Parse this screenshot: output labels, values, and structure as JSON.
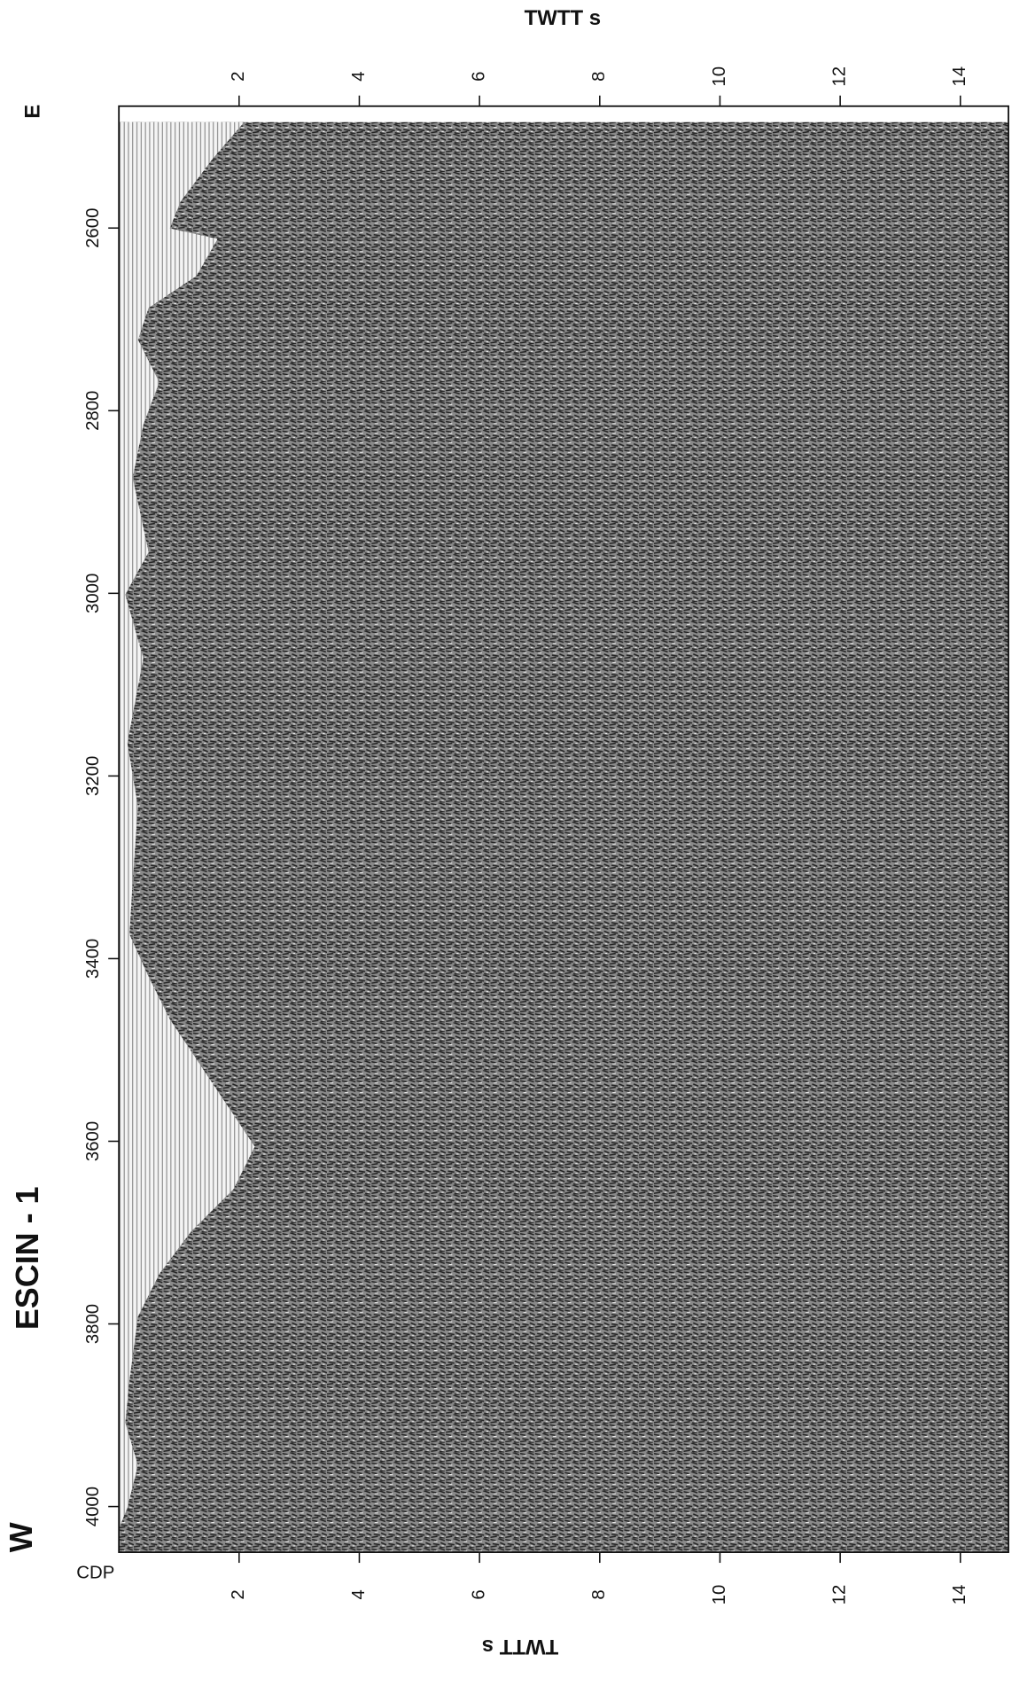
{
  "figure": {
    "title": "ESCIN - 1",
    "west_label": "W",
    "east_label": "E",
    "top_axis": {
      "title": "TWTT s",
      "lim": [
        0,
        14.8
      ],
      "ticks": [
        2,
        4,
        6,
        8,
        10,
        12,
        14
      ]
    },
    "bottom_axis": {
      "title": "TWTT s",
      "lim": [
        0,
        14.8
      ],
      "ticks": [
        2,
        4,
        6,
        8,
        10,
        12,
        14
      ]
    },
    "cdp_axis": {
      "title": "CDP",
      "lim": [
        2484,
        4050
      ],
      "ticks": [
        2600,
        2800,
        3000,
        3200,
        3400,
        3600,
        3800,
        4000
      ]
    }
  }
}
